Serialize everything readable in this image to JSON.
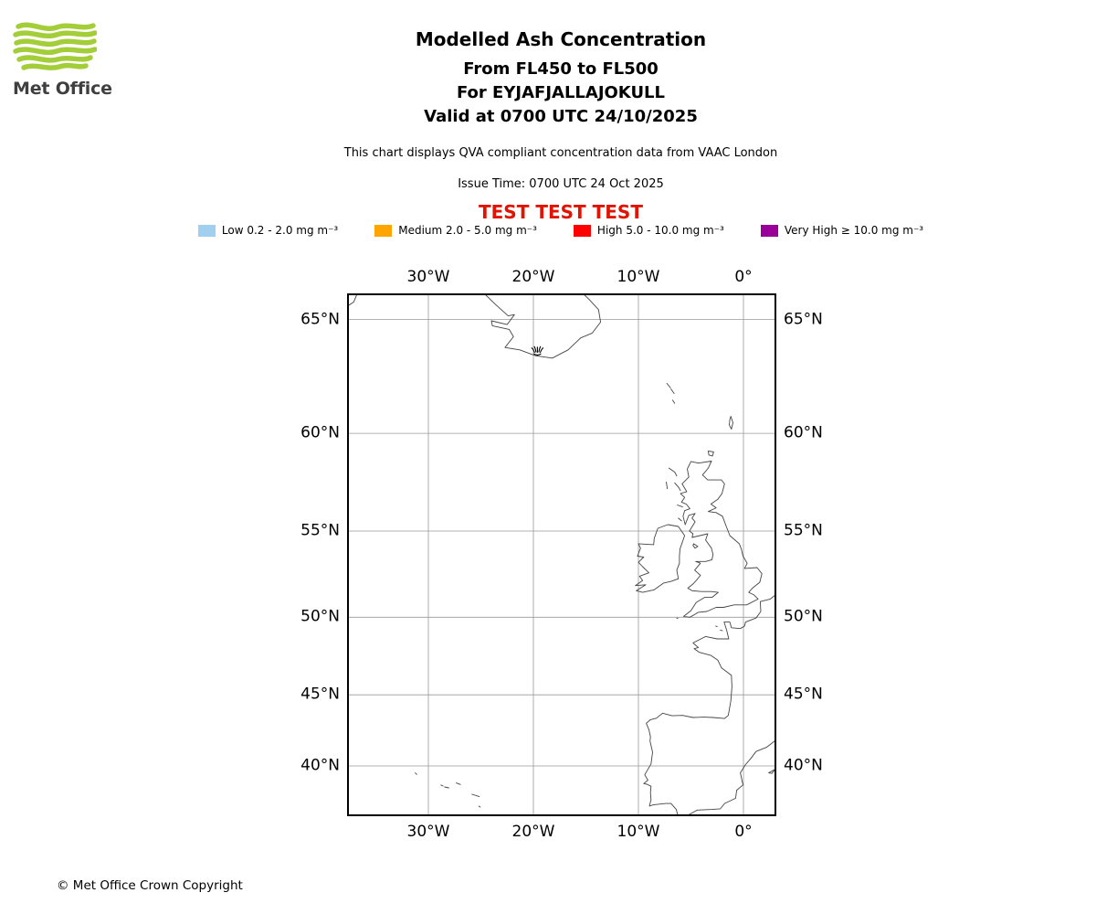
{
  "colors": {
    "brand_green": "#A4CE39",
    "logo_text": "#3F3F3F",
    "test_red": "#E01400",
    "grid": "#999999",
    "coastline": "#444444",
    "map_border": "#000000"
  },
  "logo": {
    "text": "Met Office"
  },
  "header": {
    "title": "Modelled Ash Concentration",
    "line2": "From FL450 to FL500",
    "line3": "For EYJAFJALLAJOKULL",
    "line4": "Valid at 0700 UTC 24/10/2025",
    "note": "This chart displays QVA compliant concentration data from VAAC London",
    "issue_time": "Issue Time: 0700 UTC 24 Oct 2025",
    "test_banner": "TEST TEST TEST"
  },
  "legend": {
    "items": [
      {
        "label": "Low 0.2 - 2.0 mg m⁻³",
        "color": "#A1CFF0"
      },
      {
        "label": "Medium 2.0 - 5.0 mg m⁻³",
        "color": "#FFA500"
      },
      {
        "label": "High 5.0 - 10.0 mg m⁻³",
        "color": "#FF0000"
      },
      {
        "label": "Very High ≥ 10.0 mg m⁻³",
        "color": "#990099"
      }
    ]
  },
  "footer": {
    "copyright": "© Met Office Crown Copyright"
  },
  "chart_data": {
    "type": "map",
    "projection": "mercator",
    "grid": true,
    "extent": {
      "lon_min": -37.65,
      "lon_max": 3.04,
      "lat_min": 36.3,
      "lat_max": 66.0
    },
    "lon_ticks": [
      {
        "lon": -30,
        "label": "30°W"
      },
      {
        "lon": -20,
        "label": "20°W"
      },
      {
        "lon": -10,
        "label": "10°W"
      },
      {
        "lon": 0,
        "label": "0°"
      }
    ],
    "lat_ticks": [
      {
        "lat": 65,
        "label": "65°N"
      },
      {
        "lat": 60,
        "label": "60°N"
      },
      {
        "lat": 55,
        "label": "55°N"
      },
      {
        "lat": 50,
        "label": "50°N"
      },
      {
        "lat": 45,
        "label": "45°N"
      },
      {
        "lat": 40,
        "label": "40°N"
      }
    ],
    "volcano": {
      "name": "EYJAFJALLAJOKULL",
      "lon": -19.62,
      "lat": 63.63
    },
    "ash_concentration_polygons": [],
    "coastlines": [
      {
        "name": "greenland-fragment",
        "closed": false,
        "points": [
          [
            -37.65,
            65.55
          ],
          [
            -37.1,
            65.7
          ],
          [
            -36.8,
            66.0
          ]
        ]
      },
      {
        "name": "iceland",
        "closed": false,
        "points": [
          [
            -24.6,
            66.0
          ],
          [
            -23.6,
            65.6
          ],
          [
            -22.4,
            65.15
          ],
          [
            -21.8,
            65.2
          ],
          [
            -22.5,
            64.8
          ],
          [
            -24.0,
            64.95
          ],
          [
            -23.9,
            64.75
          ],
          [
            -22.3,
            64.6
          ],
          [
            -21.9,
            64.3
          ],
          [
            -22.7,
            63.85
          ],
          [
            -21.3,
            63.75
          ],
          [
            -19.8,
            63.5
          ],
          [
            -18.2,
            63.4
          ],
          [
            -16.7,
            63.75
          ],
          [
            -15.5,
            64.25
          ],
          [
            -14.4,
            64.45
          ],
          [
            -13.6,
            64.9
          ],
          [
            -13.8,
            65.4
          ],
          [
            -14.7,
            65.8
          ],
          [
            -15.2,
            66.0
          ]
        ]
      },
      {
        "name": "faroe-1",
        "closed": false,
        "points": [
          [
            -7.3,
            62.3
          ],
          [
            -6.95,
            62.1
          ]
        ]
      },
      {
        "name": "faroe-2",
        "closed": false,
        "points": [
          [
            -6.9,
            62.05
          ],
          [
            -6.6,
            61.85
          ]
        ]
      },
      {
        "name": "faroe-3",
        "closed": false,
        "points": [
          [
            -6.75,
            61.55
          ],
          [
            -6.55,
            61.4
          ]
        ]
      },
      {
        "name": "shetland",
        "closed": true,
        "points": [
          [
            -1.2,
            60.8
          ],
          [
            -1.0,
            60.5
          ],
          [
            -1.15,
            60.2
          ],
          [
            -1.35,
            60.4
          ],
          [
            -1.3,
            60.65
          ]
        ]
      },
      {
        "name": "orkney",
        "closed": true,
        "points": [
          [
            -3.35,
            59.15
          ],
          [
            -2.85,
            59.1
          ],
          [
            -2.95,
            58.9
          ],
          [
            -3.3,
            58.95
          ]
        ]
      },
      {
        "name": "lewis",
        "closed": false,
        "points": [
          [
            -7.1,
            58.3
          ],
          [
            -6.55,
            58.1
          ],
          [
            -6.35,
            57.9
          ]
        ]
      },
      {
        "name": "uist",
        "closed": false,
        "points": [
          [
            -7.35,
            57.6
          ],
          [
            -7.25,
            57.25
          ]
        ]
      },
      {
        "name": "skye",
        "closed": false,
        "points": [
          [
            -6.55,
            57.55
          ],
          [
            -6.15,
            57.3
          ],
          [
            -6.0,
            57.15
          ]
        ]
      },
      {
        "name": "mull",
        "closed": false,
        "points": [
          [
            -6.3,
            56.4
          ],
          [
            -5.8,
            56.3
          ]
        ]
      },
      {
        "name": "islay",
        "closed": false,
        "points": [
          [
            -6.2,
            55.7
          ],
          [
            -5.9,
            55.55
          ]
        ]
      },
      {
        "name": "great-britain",
        "closed": true,
        "points": [
          [
            -5.0,
            58.63
          ],
          [
            -4.3,
            58.55
          ],
          [
            -3.05,
            58.65
          ],
          [
            -3.35,
            58.3
          ],
          [
            -3.9,
            57.95
          ],
          [
            -3.4,
            57.7
          ],
          [
            -2.1,
            57.7
          ],
          [
            -1.8,
            57.5
          ],
          [
            -2.05,
            57.0
          ],
          [
            -2.45,
            56.7
          ],
          [
            -3.1,
            56.45
          ],
          [
            -2.6,
            56.25
          ],
          [
            -3.35,
            56.05
          ],
          [
            -2.6,
            56.0
          ],
          [
            -2.0,
            55.8
          ],
          [
            -1.6,
            55.2
          ],
          [
            -1.3,
            54.75
          ],
          [
            -0.4,
            54.3
          ],
          [
            -0.2,
            54.0
          ],
          [
            -0.05,
            53.6
          ],
          [
            0.35,
            53.2
          ],
          [
            0.1,
            52.9
          ],
          [
            1.3,
            52.95
          ],
          [
            1.75,
            52.6
          ],
          [
            1.55,
            52.1
          ],
          [
            0.85,
            51.75
          ],
          [
            0.5,
            51.5
          ],
          [
            1.0,
            51.35
          ],
          [
            1.4,
            51.1
          ],
          [
            0.3,
            50.75
          ],
          [
            -0.9,
            50.75
          ],
          [
            -1.9,
            50.6
          ],
          [
            -2.6,
            50.6
          ],
          [
            -3.5,
            50.35
          ],
          [
            -4.3,
            50.3
          ],
          [
            -5.1,
            50.0
          ],
          [
            -5.7,
            50.05
          ],
          [
            -5.0,
            50.4
          ],
          [
            -4.5,
            50.9
          ],
          [
            -3.7,
            51.2
          ],
          [
            -3.0,
            51.2
          ],
          [
            -2.4,
            51.5
          ],
          [
            -3.1,
            51.55
          ],
          [
            -4.0,
            51.55
          ],
          [
            -4.9,
            51.6
          ],
          [
            -5.3,
            51.75
          ],
          [
            -4.8,
            52.0
          ],
          [
            -4.5,
            52.2
          ],
          [
            -4.1,
            52.5
          ],
          [
            -4.65,
            52.8
          ],
          [
            -4.1,
            53.2
          ],
          [
            -4.55,
            53.3
          ],
          [
            -3.6,
            53.3
          ],
          [
            -3.0,
            53.4
          ],
          [
            -2.9,
            53.7
          ],
          [
            -3.05,
            54.05
          ],
          [
            -3.6,
            54.5
          ],
          [
            -3.4,
            54.85
          ],
          [
            -4.9,
            54.65
          ],
          [
            -4.8,
            54.85
          ],
          [
            -5.15,
            55.0
          ],
          [
            -4.6,
            55.5
          ],
          [
            -4.9,
            55.7
          ],
          [
            -4.6,
            55.95
          ],
          [
            -5.2,
            55.85
          ],
          [
            -5.55,
            55.35
          ],
          [
            -5.75,
            55.8
          ],
          [
            -5.6,
            56.1
          ],
          [
            -5.1,
            56.2
          ],
          [
            -5.45,
            56.45
          ],
          [
            -5.9,
            56.55
          ],
          [
            -5.6,
            56.8
          ],
          [
            -6.0,
            57.0
          ],
          [
            -5.4,
            57.1
          ],
          [
            -5.85,
            57.5
          ],
          [
            -5.2,
            57.85
          ],
          [
            -5.35,
            58.25
          ]
        ]
      },
      {
        "name": "ireland",
        "closed": true,
        "points": [
          [
            -6.2,
            55.25
          ],
          [
            -5.6,
            54.75
          ],
          [
            -6.05,
            54.0
          ],
          [
            -6.1,
            53.6
          ],
          [
            -6.1,
            53.2
          ],
          [
            -6.35,
            52.8
          ],
          [
            -6.2,
            52.3
          ],
          [
            -6.9,
            52.15
          ],
          [
            -7.6,
            52.05
          ],
          [
            -8.5,
            51.65
          ],
          [
            -9.6,
            51.5
          ],
          [
            -10.2,
            51.6
          ],
          [
            -9.3,
            51.95
          ],
          [
            -10.3,
            51.9
          ],
          [
            -9.6,
            52.2
          ],
          [
            -9.9,
            52.45
          ],
          [
            -9.0,
            52.65
          ],
          [
            -9.6,
            53.0
          ],
          [
            -10.0,
            53.25
          ],
          [
            -9.5,
            53.55
          ],
          [
            -10.1,
            53.6
          ],
          [
            -9.8,
            54.05
          ],
          [
            -10.0,
            54.3
          ],
          [
            -8.55,
            54.25
          ],
          [
            -8.5,
            54.6
          ],
          [
            -8.15,
            55.15
          ],
          [
            -7.2,
            55.35
          ]
        ]
      },
      {
        "name": "isle-of-man",
        "closed": true,
        "points": [
          [
            -4.75,
            54.3
          ],
          [
            -4.35,
            54.15
          ],
          [
            -4.6,
            54.05
          ],
          [
            -4.8,
            54.2
          ]
        ]
      },
      {
        "name": "scilly",
        "closed": false,
        "points": [
          [
            -6.35,
            49.92
          ],
          [
            -6.25,
            49.95
          ]
        ]
      },
      {
        "name": "channel-island-1",
        "closed": false,
        "points": [
          [
            -2.65,
            49.45
          ],
          [
            -2.5,
            49.42
          ]
        ]
      },
      {
        "name": "channel-island-2",
        "closed": false,
        "points": [
          [
            -2.2,
            49.2
          ],
          [
            -2.0,
            49.17
          ]
        ]
      },
      {
        "name": "continental-europe",
        "closed": false,
        "points": [
          [
            3.05,
            51.35
          ],
          [
            2.55,
            51.1
          ],
          [
            1.6,
            50.95
          ],
          [
            1.65,
            50.35
          ],
          [
            1.2,
            49.95
          ],
          [
            0.2,
            49.7
          ],
          [
            0.1,
            49.45
          ],
          [
            -0.3,
            49.3
          ],
          [
            -1.15,
            49.35
          ],
          [
            -1.3,
            49.7
          ],
          [
            -1.85,
            49.7
          ],
          [
            -1.6,
            49.2
          ],
          [
            -1.4,
            48.65
          ],
          [
            -2.5,
            48.65
          ],
          [
            -3.6,
            48.8
          ],
          [
            -4.8,
            48.4
          ],
          [
            -4.3,
            48.1
          ],
          [
            -4.7,
            48.03
          ],
          [
            -4.2,
            47.8
          ],
          [
            -3.1,
            47.6
          ],
          [
            -2.45,
            47.3
          ],
          [
            -2.1,
            46.8
          ],
          [
            -1.15,
            46.3
          ],
          [
            -1.1,
            45.55
          ],
          [
            -1.2,
            44.6
          ],
          [
            -1.45,
            43.6
          ],
          [
            -1.8,
            43.38
          ],
          [
            -2.9,
            43.45
          ],
          [
            -3.8,
            43.48
          ],
          [
            -4.8,
            43.45
          ],
          [
            -5.8,
            43.6
          ],
          [
            -6.8,
            43.57
          ],
          [
            -7.7,
            43.75
          ],
          [
            -8.3,
            43.4
          ],
          [
            -8.85,
            43.3
          ],
          [
            -9.25,
            43.05
          ],
          [
            -9.0,
            42.6
          ],
          [
            -8.85,
            42.1
          ],
          [
            -8.9,
            41.8
          ],
          [
            -8.65,
            41.0
          ],
          [
            -8.8,
            40.15
          ],
          [
            -9.4,
            39.35
          ],
          [
            -9.1,
            38.95
          ],
          [
            -9.5,
            38.7
          ],
          [
            -9.2,
            38.65
          ],
          [
            -8.8,
            38.5
          ],
          [
            -8.85,
            38.0
          ],
          [
            -8.8,
            37.5
          ],
          [
            -8.95,
            37.0
          ],
          [
            -8.6,
            37.1
          ],
          [
            -7.4,
            37.2
          ],
          [
            -6.9,
            37.2
          ],
          [
            -6.4,
            36.75
          ],
          [
            -6.25,
            36.3
          ]
        ]
      },
      {
        "name": "iberia-mediterranean",
        "closed": false,
        "points": [
          [
            -5.3,
            36.3
          ],
          [
            -4.4,
            36.7
          ],
          [
            -3.0,
            36.75
          ],
          [
            -2.2,
            36.8
          ],
          [
            -1.8,
            37.2
          ],
          [
            -0.75,
            37.6
          ],
          [
            -0.65,
            38.2
          ],
          [
            -0.05,
            38.6
          ],
          [
            -0.3,
            39.5
          ],
          [
            0.2,
            40.1
          ],
          [
            0.7,
            40.55
          ],
          [
            1.2,
            41.05
          ],
          [
            2.2,
            41.35
          ],
          [
            3.05,
            41.85
          ]
        ]
      },
      {
        "name": "mallorca",
        "closed": true,
        "points": [
          [
            2.4,
            39.5
          ],
          [
            3.0,
            39.75
          ],
          [
            2.7,
            39.45
          ]
        ]
      },
      {
        "name": "azores-flores",
        "closed": false,
        "points": [
          [
            -31.25,
            39.5
          ],
          [
            -31.1,
            39.38
          ]
        ]
      },
      {
        "name": "azores-faial",
        "closed": false,
        "points": [
          [
            -28.8,
            38.6
          ],
          [
            -28.6,
            38.52
          ]
        ]
      },
      {
        "name": "azores-pico",
        "closed": false,
        "points": [
          [
            -28.45,
            38.45
          ],
          [
            -28.05,
            38.38
          ]
        ]
      },
      {
        "name": "azores-terceira",
        "closed": false,
        "points": [
          [
            -27.35,
            38.75
          ],
          [
            -26.95,
            38.63
          ]
        ]
      },
      {
        "name": "azores-sao-miguel",
        "closed": false,
        "points": [
          [
            -25.85,
            37.9
          ],
          [
            -25.15,
            37.72
          ]
        ]
      },
      {
        "name": "azores-santa-maria",
        "closed": false,
        "points": [
          [
            -25.2,
            37.0
          ],
          [
            -25.05,
            36.93
          ]
        ]
      }
    ]
  }
}
